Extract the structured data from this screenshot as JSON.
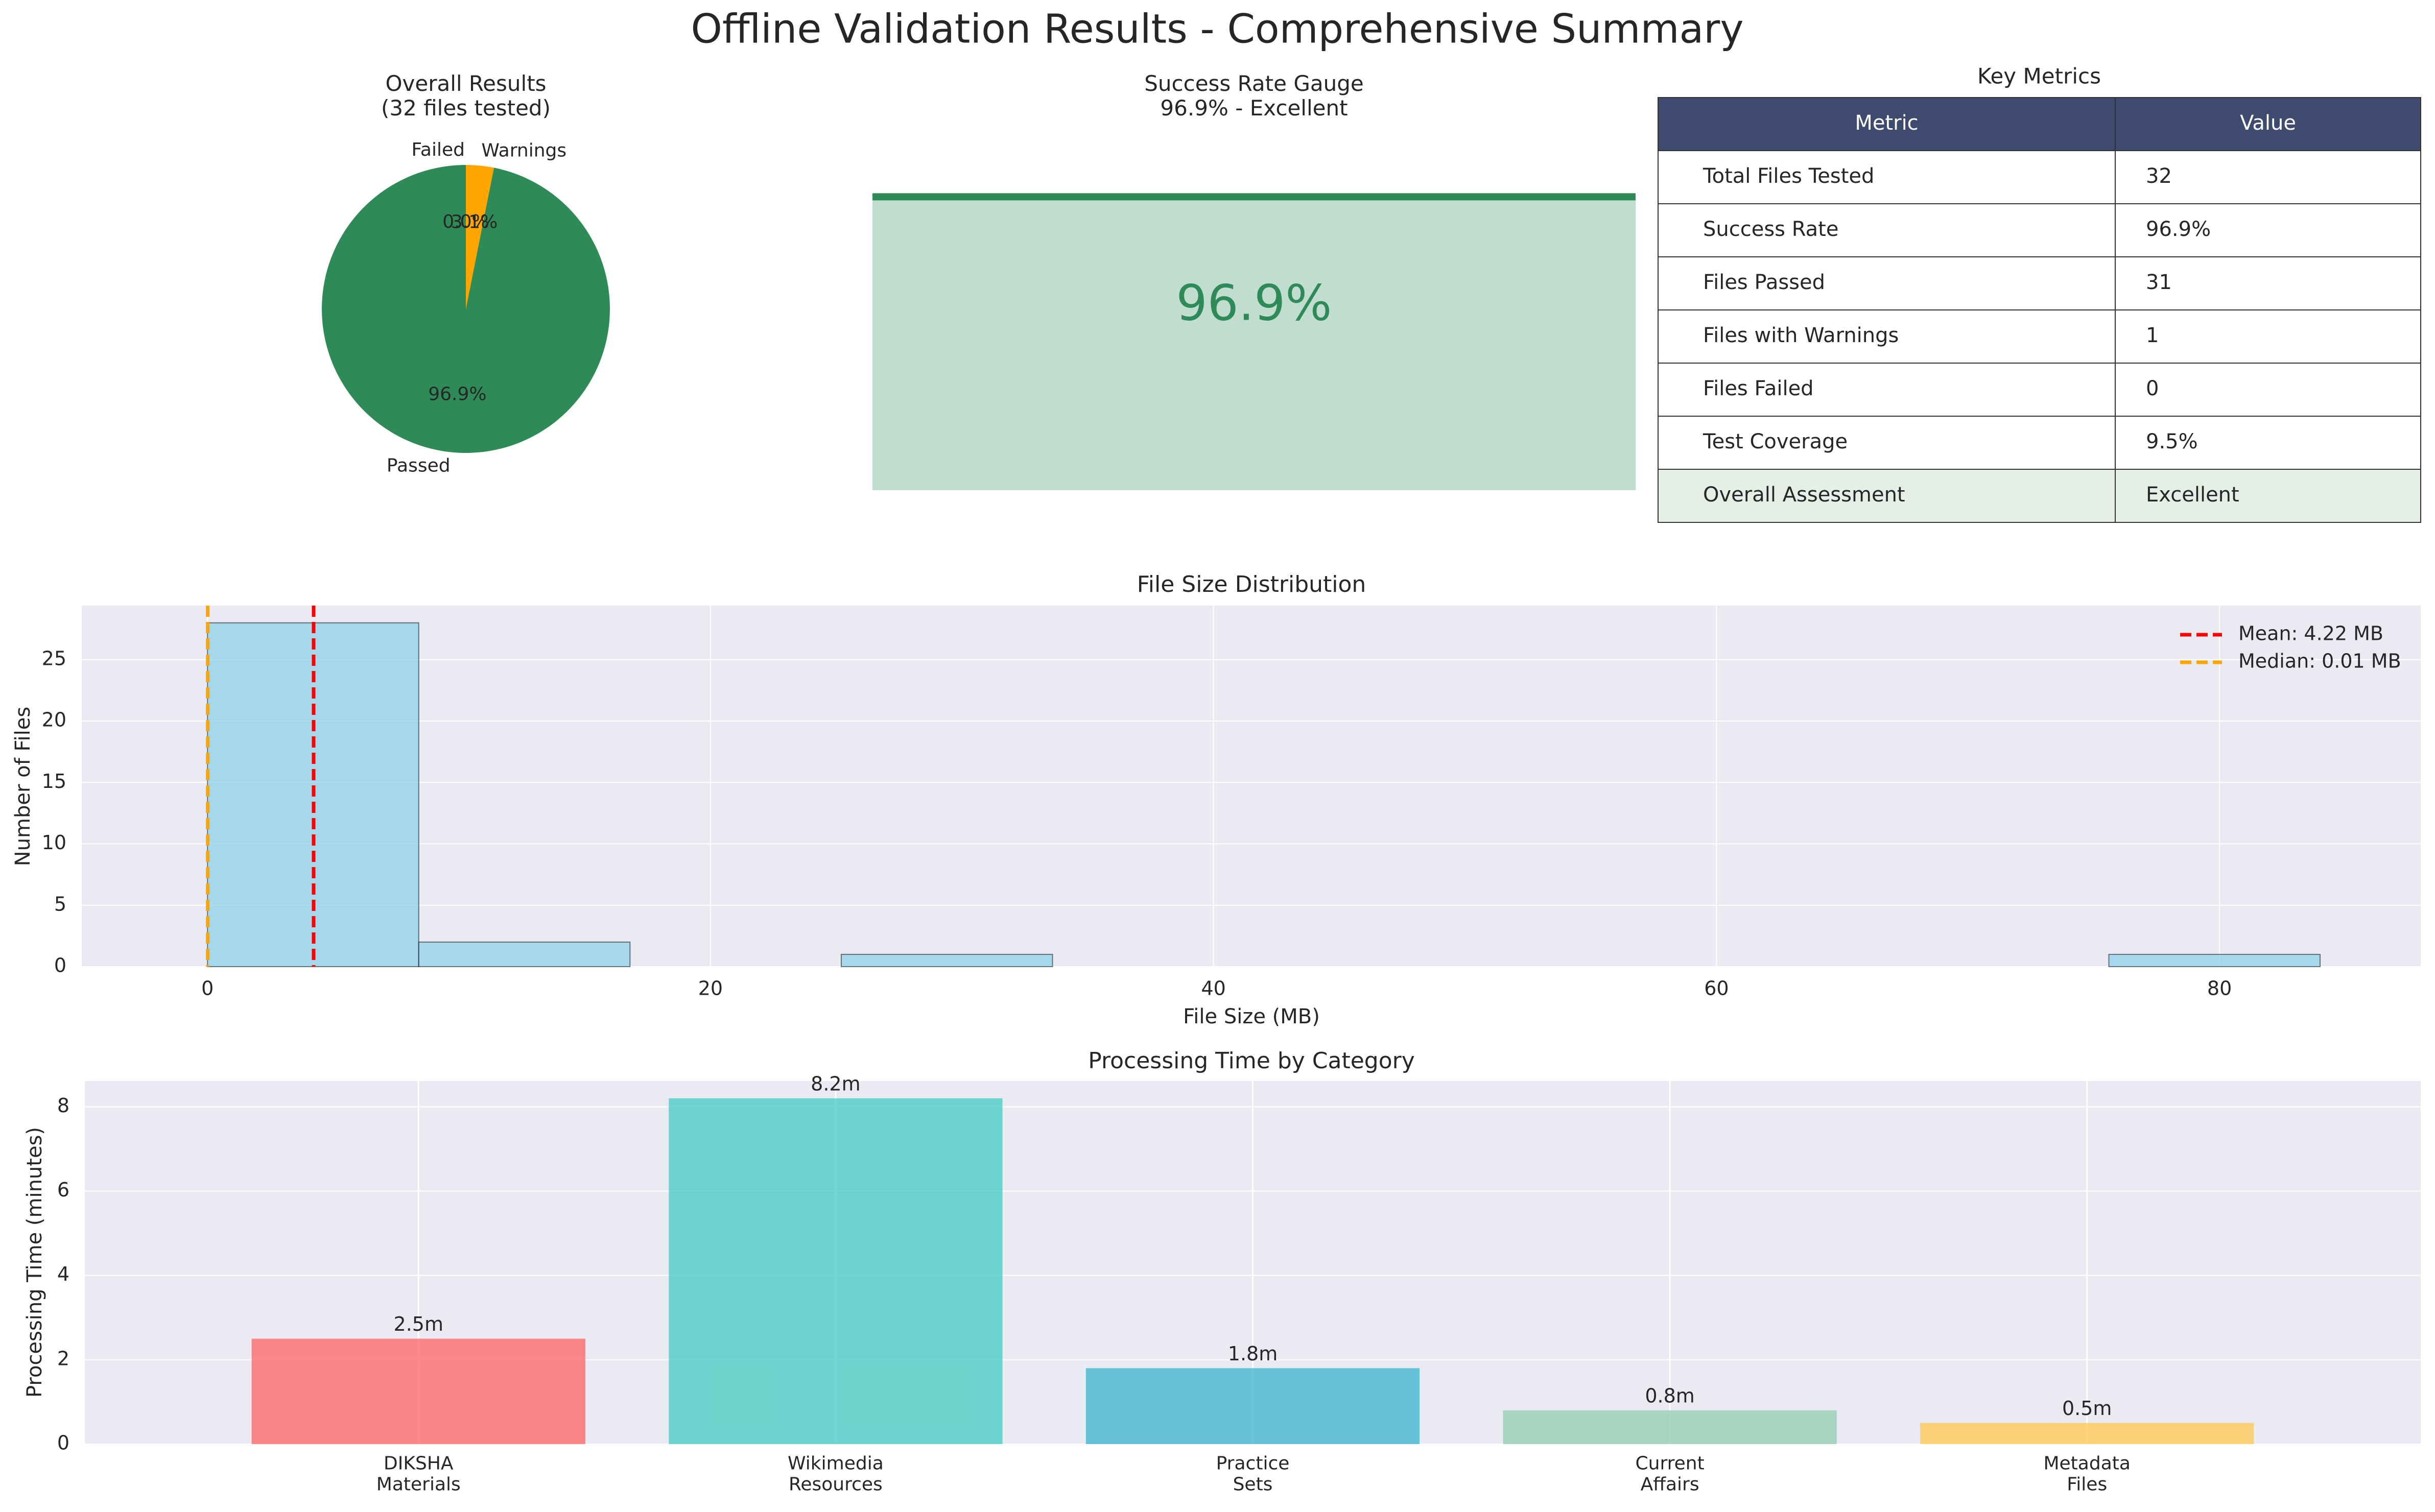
{
  "title": "Offline Validation Results - Comprehensive Summary",
  "colors": {
    "passed": "#2e8b57",
    "warnings": "#ffa500",
    "failed": "#dc3545",
    "hist": "#87ceeb",
    "mean": "#ff0000",
    "median": "#ffa500",
    "table_header": "#3f4a6f",
    "table_assess": "#e5efe8",
    "plot_bg": "#eaeaf2"
  },
  "chart_data": [
    {
      "type": "pie",
      "title": "Overall Results\n(32 files tested)",
      "labels": [
        "Passed",
        "Warnings",
        "Failed"
      ],
      "values": [
        31,
        1,
        0
      ],
      "autopct": [
        "96.9%",
        "3.1%",
        "0.0%"
      ]
    },
    {
      "type": "bar",
      "title": "Success Rate Gauge\n96.9% - Excellent",
      "value": 96.9,
      "value_label": "96.9%",
      "ylim": [
        0,
        100
      ]
    },
    {
      "type": "table",
      "title": "Key Metrics",
      "columns": [
        "Metric",
        "Value"
      ],
      "rows": [
        [
          "Total Files Tested",
          "32"
        ],
        [
          "Success Rate",
          "96.9%"
        ],
        [
          "Files Passed",
          "31"
        ],
        [
          "Files with Warnings",
          "1"
        ],
        [
          "Files Failed",
          "0"
        ],
        [
          "Test Coverage",
          "9.5%"
        ],
        [
          "Overall Assessment",
          "Excellent"
        ]
      ]
    },
    {
      "type": "bar",
      "subtype": "histogram",
      "title": "File Size Distribution",
      "xlabel": "File Size (MB)",
      "ylabel": "Number of Files",
      "xlim": [
        -5,
        88
      ],
      "ylim": [
        0,
        29.4
      ],
      "xticks": [
        0,
        20,
        40,
        60,
        80
      ],
      "yticks": [
        0,
        5,
        10,
        15,
        20,
        25
      ],
      "bins": [
        {
          "x0": 0,
          "x1": 8.4,
          "count": 28
        },
        {
          "x0": 8.4,
          "x1": 16.8,
          "count": 2
        },
        {
          "x0": 16.8,
          "x1": 25.2,
          "count": 0
        },
        {
          "x0": 25.2,
          "x1": 33.6,
          "count": 1
        },
        {
          "x0": 33.6,
          "x1": 42.0,
          "count": 0
        },
        {
          "x0": 42.0,
          "x1": 50.4,
          "count": 0
        },
        {
          "x0": 50.4,
          "x1": 58.8,
          "count": 0
        },
        {
          "x0": 58.8,
          "x1": 67.2,
          "count": 0
        },
        {
          "x0": 67.2,
          "x1": 75.6,
          "count": 0
        },
        {
          "x0": 75.6,
          "x1": 84.0,
          "count": 1
        }
      ],
      "lines": [
        {
          "name": "Mean: 4.22 MB",
          "x": 4.22
        },
        {
          "name": "Median: 0.01 MB",
          "x": 0.01
        }
      ],
      "legend": "top-right",
      "grid": true
    },
    {
      "type": "bar",
      "title": "Processing Time by Category",
      "ylabel": "Processing Time (minutes)",
      "categories": [
        "DIKSHA\nMaterials",
        "Wikimedia\nResources",
        "Practice\nSets",
        "Current\nAffairs",
        "Metadata\nFiles"
      ],
      "values": [
        2.5,
        8.2,
        1.8,
        0.8,
        0.5
      ],
      "labels": [
        "2.5m",
        "8.2m",
        "1.8m",
        "0.8m",
        "0.5m"
      ],
      "colors": [
        "#ff6b6b",
        "#4ecdc4",
        "#45b7d1",
        "#96ceb4",
        "#feca57"
      ],
      "ylim": [
        0,
        8.61
      ],
      "yticks": [
        0,
        2,
        4,
        6,
        8
      ],
      "grid": true
    }
  ]
}
